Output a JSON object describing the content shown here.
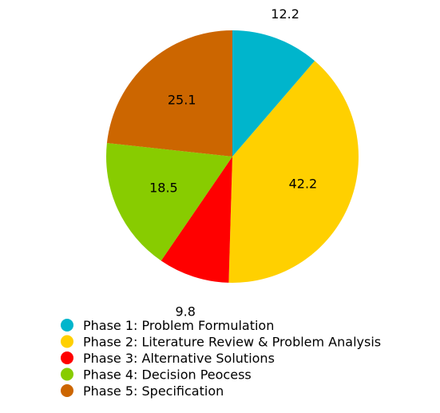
{
  "chart_data": {
    "type": "pie",
    "title": "",
    "legend_position": "bottom-left",
    "slices": [
      {
        "label": "Phase 1: Problem Formulation",
        "value": 12.2,
        "value_label": "12.2",
        "color": "#00B5CC",
        "label_placement": "outside"
      },
      {
        "label": "Phase 2: Literature Review & Problem Analysis",
        "value": 42.2,
        "value_label": "42.2",
        "color": "#FFD000",
        "label_placement": "inside"
      },
      {
        "label": "Phase 3: Alternative Solutions",
        "value": 9.8,
        "value_label": "9.8",
        "color": "#FF0000",
        "label_placement": "outside"
      },
      {
        "label": "Phase 4: Decision Peocess",
        "value": 18.5,
        "value_label": "18.5",
        "color": "#88CC00",
        "label_placement": "inside"
      },
      {
        "label": "Phase 5: Specification",
        "value": 25.1,
        "value_label": "25.1",
        "color": "#CC6600",
        "label_placement": "inside"
      }
    ]
  }
}
